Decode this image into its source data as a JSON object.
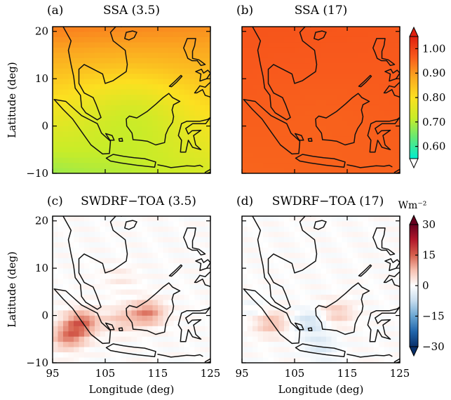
{
  "chart_data": [
    {
      "type": "heatmap",
      "panel_label": "(a)",
      "title": "SSA (3.5)",
      "variable": "SSA",
      "x_ticks": [
        95,
        105,
        115,
        125
      ],
      "y_ticks": [
        -10,
        0,
        10,
        20
      ],
      "xlim": [
        95,
        125
      ],
      "ylim": [
        -10,
        21
      ],
      "xlabel": "",
      "ylabel": "Latitude (deg)",
      "field": {
        "corner_values": {
          "sw": 0.68,
          "se": 0.74,
          "nw": 0.93,
          "ne": 0.91
        },
        "center_min": 0.66
      },
      "show_x_ticklabels": false,
      "show_y_ticklabels": true
    },
    {
      "type": "heatmap",
      "panel_label": "(b)",
      "title": "SSA (17)",
      "variable": "SSA",
      "x_ticks": [
        95,
        105,
        115,
        125
      ],
      "y_ticks": [
        -10,
        0,
        10,
        20
      ],
      "xlim": [
        95,
        125
      ],
      "ylim": [
        -10,
        21
      ],
      "xlabel": "",
      "ylabel": "",
      "field": {
        "corner_values": {
          "sw": 0.955,
          "se": 0.96,
          "nw": 0.975,
          "ne": 0.97
        },
        "center_min": 0.955
      },
      "show_x_ticklabels": false,
      "show_y_ticklabels": false
    },
    {
      "type": "heatmap",
      "panel_label": "(c)",
      "title": "SWDRF−TOA (3.5)",
      "variable": "SWDRF-TOA",
      "x_ticks": [
        95,
        105,
        115,
        125
      ],
      "y_ticks": [
        -10,
        0,
        10,
        20
      ],
      "xlim": [
        95,
        125
      ],
      "ylim": [
        -10,
        21
      ],
      "xlabel": "Longitude (deg)",
      "ylabel": "Latitude (deg)",
      "hotspots": [
        {
          "lon": 100.5,
          "lat": -1.5,
          "value": 14
        },
        {
          "lon": 98,
          "lat": -4.5,
          "value": 12
        },
        {
          "lon": 113,
          "lat": 0.5,
          "value": 12
        },
        {
          "lon": 108,
          "lat": -1,
          "value": 6
        },
        {
          "lon": 108,
          "lat": 8,
          "value": 2
        }
      ],
      "show_x_ticklabels": true,
      "show_y_ticklabels": true
    },
    {
      "type": "heatmap",
      "panel_label": "(d)",
      "title": "SWDRF−TOA (17)",
      "variable": "SWDRF-TOA",
      "x_ticks": [
        95,
        105,
        115,
        125
      ],
      "y_ticks": [
        -10,
        0,
        10,
        20
      ],
      "xlim": [
        95,
        125
      ],
      "ylim": [
        -10,
        21
      ],
      "xlabel": "Longitude (deg)",
      "ylabel": "",
      "hotspots": [
        {
          "lon": 100.5,
          "lat": -1.5,
          "value": 8
        },
        {
          "lon": 113,
          "lat": 0.5,
          "value": 6
        },
        {
          "lon": 108,
          "lat": -1.5,
          "value": -6
        },
        {
          "lon": 110,
          "lat": -6.5,
          "value": -4
        },
        {
          "lon": 98,
          "lat": 1,
          "value": -2
        }
      ],
      "show_x_ticklabels": true,
      "show_y_ticklabels": false
    }
  ],
  "colorbars": [
    {
      "variable": "SSA",
      "label": "",
      "ticks": [
        "1.00",
        "0.90",
        "0.80",
        "0.70",
        "0.60"
      ],
      "range": [
        0.55,
        1.05
      ],
      "colors": [
        "#00ecd0",
        "#60e878",
        "#c8ec28",
        "#fce020",
        "#fba820",
        "#f85a1c",
        "#e02010"
      ],
      "extend": [
        "white",
        "#e02010"
      ]
    },
    {
      "variable": "SWDRF-TOA",
      "label": "Wm⁻²",
      "ticks": [
        "30",
        "15",
        "0",
        "−15",
        "−30"
      ],
      "range": [
        -30,
        30
      ],
      "colors": [
        "#08306b",
        "#2166ac",
        "#6aa6d2",
        "#c6dcee",
        "#ffffff",
        "#f6c0b0",
        "#d6604d",
        "#b2182b",
        "#67001f"
      ],
      "extend": [
        "#08306b",
        "#67001f"
      ]
    }
  ]
}
